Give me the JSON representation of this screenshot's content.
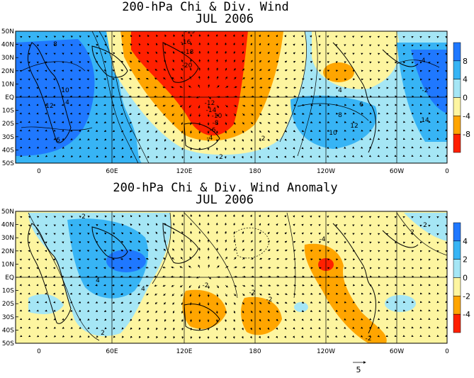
{
  "chart_data": [
    {
      "type": "heatmap",
      "title": "200-hPa Chi & Div. Wind",
      "subtitle": "JUL 2006",
      "x_ticks": [
        "0",
        "60E",
        "120E",
        "180",
        "120W",
        "60W",
        "0"
      ],
      "y_ticks": [
        "50N",
        "40N",
        "30N",
        "20N",
        "10N",
        "EQ",
        "10S",
        "20S",
        "30S",
        "40S",
        "50S"
      ],
      "colorbar": {
        "ticks": [
          "8",
          "4",
          "0",
          "-4",
          "-8"
        ],
        "colors": [
          "#1f78ff",
          "#37b4f5",
          "#a5e6f5",
          "#fdf5a0",
          "#ffa500",
          "#ff2000"
        ]
      },
      "contour_labels": [
        "-19",
        "-16",
        "-18",
        "-20",
        "-12",
        "-14",
        "-10",
        "-8",
        "-6",
        "-4",
        "-2",
        "2",
        "4",
        "6",
        "8",
        "10",
        "12",
        "14",
        "8",
        "10",
        "12",
        "4",
        "6",
        "-4",
        "-2"
      ]
    },
    {
      "type": "heatmap",
      "title": "200-hPa Chi & Div. Wind Anomaly",
      "subtitle": "JUL 2006",
      "x_ticks": [
        "0",
        "60E",
        "120E",
        "180",
        "120W",
        "60W",
        "0"
      ],
      "y_ticks": [
        "50N",
        "40N",
        "30N",
        "20N",
        "10N",
        "EQ",
        "10S",
        "20S",
        "30S",
        "40S",
        "50S"
      ],
      "colorbar": {
        "ticks": [
          "4",
          "2",
          "0",
          "-2",
          "-4"
        ],
        "colors": [
          "#1f78ff",
          "#37b4f5",
          "#a5e6f5",
          "#fdf5a0",
          "#ffa500",
          "#ff2000"
        ]
      },
      "contour_labels": [
        "2",
        "4",
        "4",
        "2",
        "-2",
        "-2",
        "-2",
        "-4",
        "-2",
        "2",
        "2"
      ],
      "vector_reference": "5"
    }
  ]
}
